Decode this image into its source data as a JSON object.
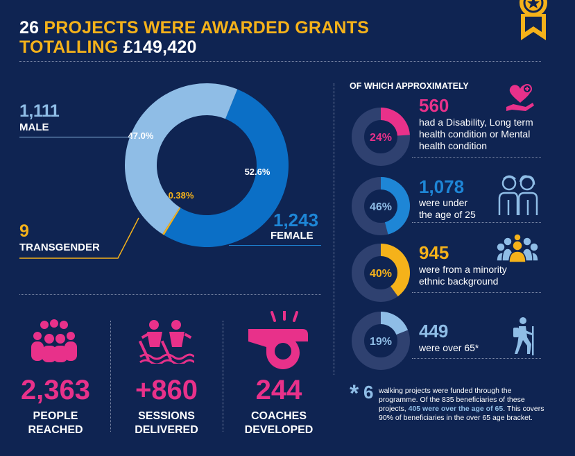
{
  "header": {
    "title_count": "26",
    "title_line1_rest": "PROJECTS WERE AWARDED GRANTS",
    "title_line2_gold": "TOTALLING",
    "title_line2_amount": "£149,420"
  },
  "gender": {
    "male_count": "1,111",
    "male_label": "MALE",
    "female_count": "1,243",
    "female_label": "FEMALE",
    "transgender_count": "9",
    "transgender_label": "TRANSGENDER",
    "male_pct_label": "47.0%",
    "female_pct_label": "52.6%",
    "transgender_pct_label": "0.38%"
  },
  "chart_data": {
    "type": "pie",
    "categories": [
      "Male",
      "Female",
      "Transgender"
    ],
    "values": [
      47.0,
      52.6,
      0.38
    ],
    "colors": [
      "#8fbde6",
      "#0b6fc6",
      "#f5b21a"
    ]
  },
  "approx": {
    "heading": "OF WHICH APPROXIMATELY",
    "items": [
      {
        "pct": "24%",
        "value": 24,
        "color": "#e8318a",
        "count": "560",
        "desc": [
          "had a Disability, Long term",
          "health condition or Mental",
          "health condition"
        ],
        "icon": "heart-hand-icon"
      },
      {
        "pct": "46%",
        "value": 46,
        "color": "#1e86d6",
        "count": "1,078",
        "desc": [
          "were under",
          "the age of 25"
        ],
        "icon": "young-people-icon"
      },
      {
        "pct": "40%",
        "value": 40,
        "color": "#f5b21a",
        "count": "945",
        "desc": [
          "were from a minority",
          "ethnic background"
        ],
        "icon": "group-icon"
      },
      {
        "pct": "19%",
        "value": 19,
        "color": "#8fbde6",
        "count": "449",
        "desc": [
          "were over 65*"
        ],
        "icon": "hiker-icon"
      }
    ]
  },
  "stats": [
    {
      "value": "2,363",
      "label1": "PEOPLE",
      "label2": "REACHED"
    },
    {
      "value": "+860",
      "label1": "SESSIONS",
      "label2": "DELIVERED"
    },
    {
      "value": "244",
      "label1": "COACHES",
      "label2": "DEVELOPED"
    }
  ],
  "footnote": {
    "star": "*",
    "count": "6",
    "line1": "walking projects were funded through the",
    "line2": "programme. Of the 835 beneficiaries of these",
    "line3_a": "projects, ",
    "line3_b": "405 were over the age of 65",
    "line3_c": ". This covers",
    "line4": "90% of beneficiaries in the over 65 age bracket."
  }
}
